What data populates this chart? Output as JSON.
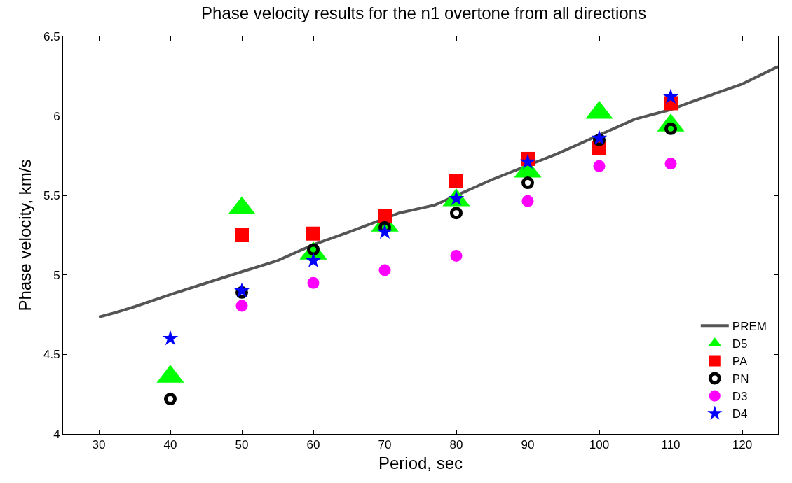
{
  "chart_data": {
    "type": "scatter",
    "title": "Phase velocity results for the n1 overtone from all directions",
    "xlabel": "Period, sec",
    "ylabel": "Phase velocity, km/s",
    "xlim": [
      25,
      125
    ],
    "xticks": [
      30,
      40,
      50,
      60,
      70,
      80,
      90,
      100,
      110,
      120
    ],
    "ylim": [
      4,
      6.5
    ],
    "yticks": [
      4,
      4.5,
      5,
      5.5,
      6,
      6.5
    ],
    "grid": false,
    "legend": "bottom right",
    "series": [
      {
        "name": "PREM",
        "type": "line",
        "color": "#555555",
        "line_style": "solid",
        "x": [
          30,
          32.5,
          35,
          40,
          43,
          50,
          55,
          60,
          65,
          70,
          72,
          77,
          85,
          94,
          105,
          110,
          113,
          120,
          125
        ],
        "values": [
          4.735,
          4.765,
          4.8,
          4.876,
          4.92,
          5.02,
          5.09,
          5.19,
          5.27,
          5.355,
          5.39,
          5.44,
          5.6,
          5.76,
          5.98,
          6.04,
          6.09,
          6.2,
          6.31
        ]
      },
      {
        "name": "D5",
        "color": "#00ff00",
        "marker": "triangle",
        "x": [
          40,
          50,
          60,
          70,
          80,
          90,
          100,
          110
        ],
        "values": [
          4.36,
          5.42,
          5.135,
          5.31,
          5.47,
          5.65,
          6.02,
          5.94
        ]
      },
      {
        "name": "PA",
        "color": "#ff0000",
        "marker": "square",
        "x": [
          50,
          60,
          70,
          80,
          90,
          100,
          110
        ],
        "values": [
          5.25,
          5.26,
          5.37,
          5.59,
          5.73,
          5.8,
          6.08
        ]
      },
      {
        "name": "PN",
        "color": "#000000",
        "marker": "circle-open",
        "x": [
          40,
          50,
          60,
          70,
          80,
          90,
          100,
          110
        ],
        "values": [
          4.22,
          4.89,
          5.16,
          5.3,
          5.39,
          5.58,
          5.85,
          5.92
        ]
      },
      {
        "name": "D3",
        "color": "#ff00ff",
        "marker": "circle",
        "x": [
          50,
          60,
          70,
          80,
          90,
          100,
          110
        ],
        "values": [
          4.805,
          4.95,
          5.03,
          5.12,
          5.465,
          5.685,
          5.7
        ]
      },
      {
        "name": "D4",
        "color": "#0000ff",
        "marker": "star",
        "x": [
          40,
          50,
          60,
          70,
          80,
          90,
          100,
          110
        ],
        "values": [
          4.6,
          4.9,
          5.09,
          5.27,
          5.48,
          5.71,
          5.86,
          6.12
        ]
      }
    ]
  }
}
